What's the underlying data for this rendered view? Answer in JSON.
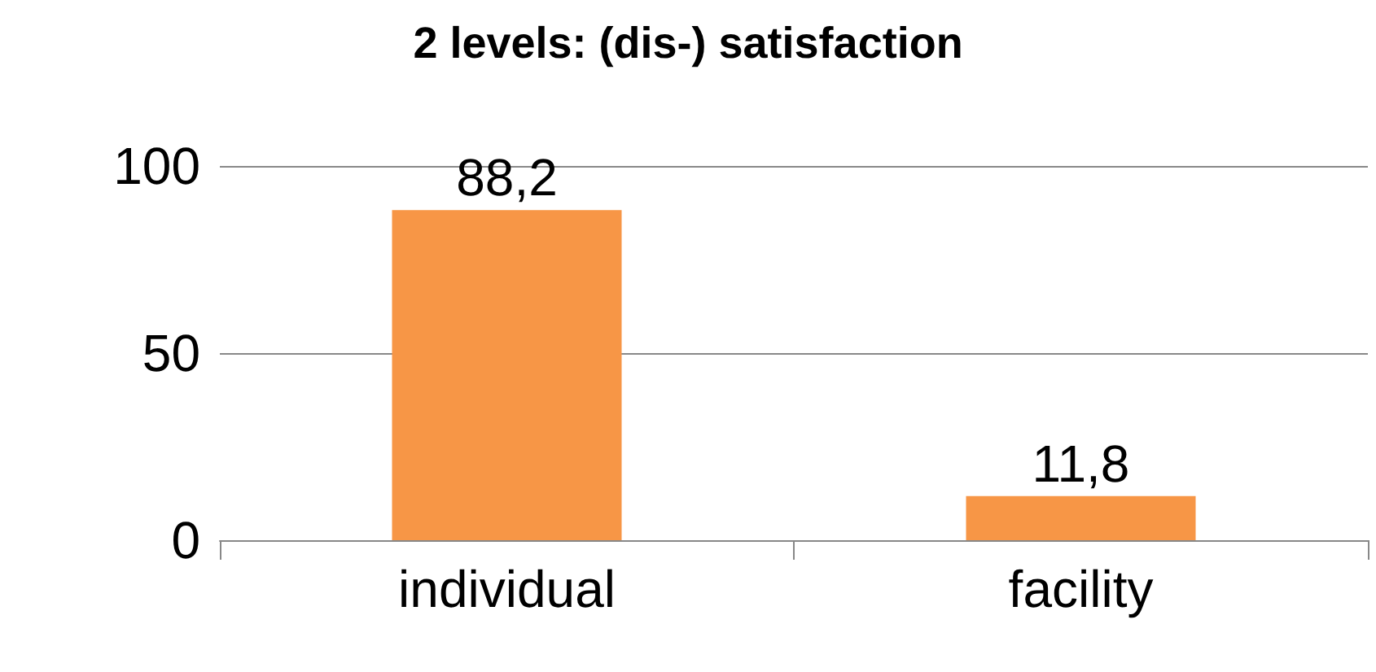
{
  "chart_data": {
    "type": "bar",
    "title": "2 levels: (dis-) satisfaction",
    "categories": [
      "individual",
      "facility"
    ],
    "values": [
      88.2,
      11.8
    ],
    "color": "#f79646",
    "value_labels": [
      "88,2",
      "11,8"
    ],
    "ylim": [
      0,
      100
    ],
    "yticks": [
      0,
      50,
      100
    ],
    "grid": "y"
  }
}
